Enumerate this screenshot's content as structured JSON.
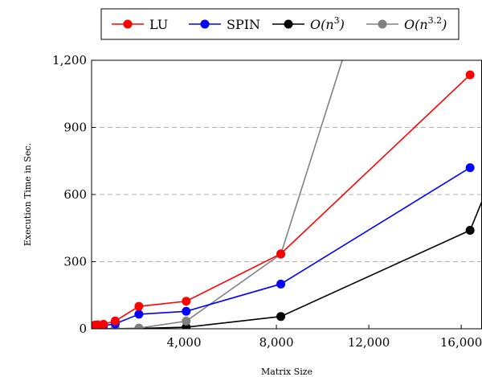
{
  "chart_data": {
    "type": "line",
    "xlabel": "Matrix Size",
    "ylabel": "Execution Time in Sec.",
    "xlim": [
      0,
      16900
    ],
    "ylim": [
      0,
      1200
    ],
    "xticks": [
      4000,
      8000,
      12000,
      16000
    ],
    "xtick_labels": [
      "4,000",
      "8,000",
      "12,000",
      "16,000"
    ],
    "yticks": [
      0,
      300,
      600,
      900,
      1200
    ],
    "ytick_labels": [
      "0",
      "300",
      "600",
      "900",
      "1,200"
    ],
    "grid": "horizontal dashed",
    "legend": "top",
    "series": [
      {
        "name": "LU",
        "color": "#ff0000",
        "x": [
          128,
          256,
          512,
          1024,
          2048,
          4096,
          8192,
          16384
        ],
        "y": [
          16,
          18,
          20,
          35,
          100,
          123,
          335,
          1135
        ]
      },
      {
        "name": "SPIN",
        "color": "#0000ff",
        "x": [
          128,
          256,
          512,
          1024,
          2048,
          4096,
          8192,
          16384
        ],
        "y": [
          12,
          13,
          14,
          22,
          65,
          78,
          200,
          720
        ]
      },
      {
        "name": "O(n^3)",
        "color": "#000000",
        "x": [
          128,
          256,
          512,
          1024,
          2048,
          4096,
          8192,
          16384,
          16900
        ],
        "y": [
          0,
          0,
          0,
          0.2,
          1.5,
          7,
          55,
          440,
          570
        ]
      },
      {
        "name": "O(n^3.2)",
        "color": "#808080",
        "x": [
          128,
          256,
          512,
          1024,
          2048,
          4096,
          8192,
          10850
        ],
        "y": [
          0,
          0,
          0,
          0.4,
          3,
          34,
          333,
          1200
        ]
      }
    ]
  },
  "legend": {
    "lu": "LU",
    "spin": "SPIN",
    "on3": "O(n^3)",
    "on32": "O(n^3.2)"
  }
}
